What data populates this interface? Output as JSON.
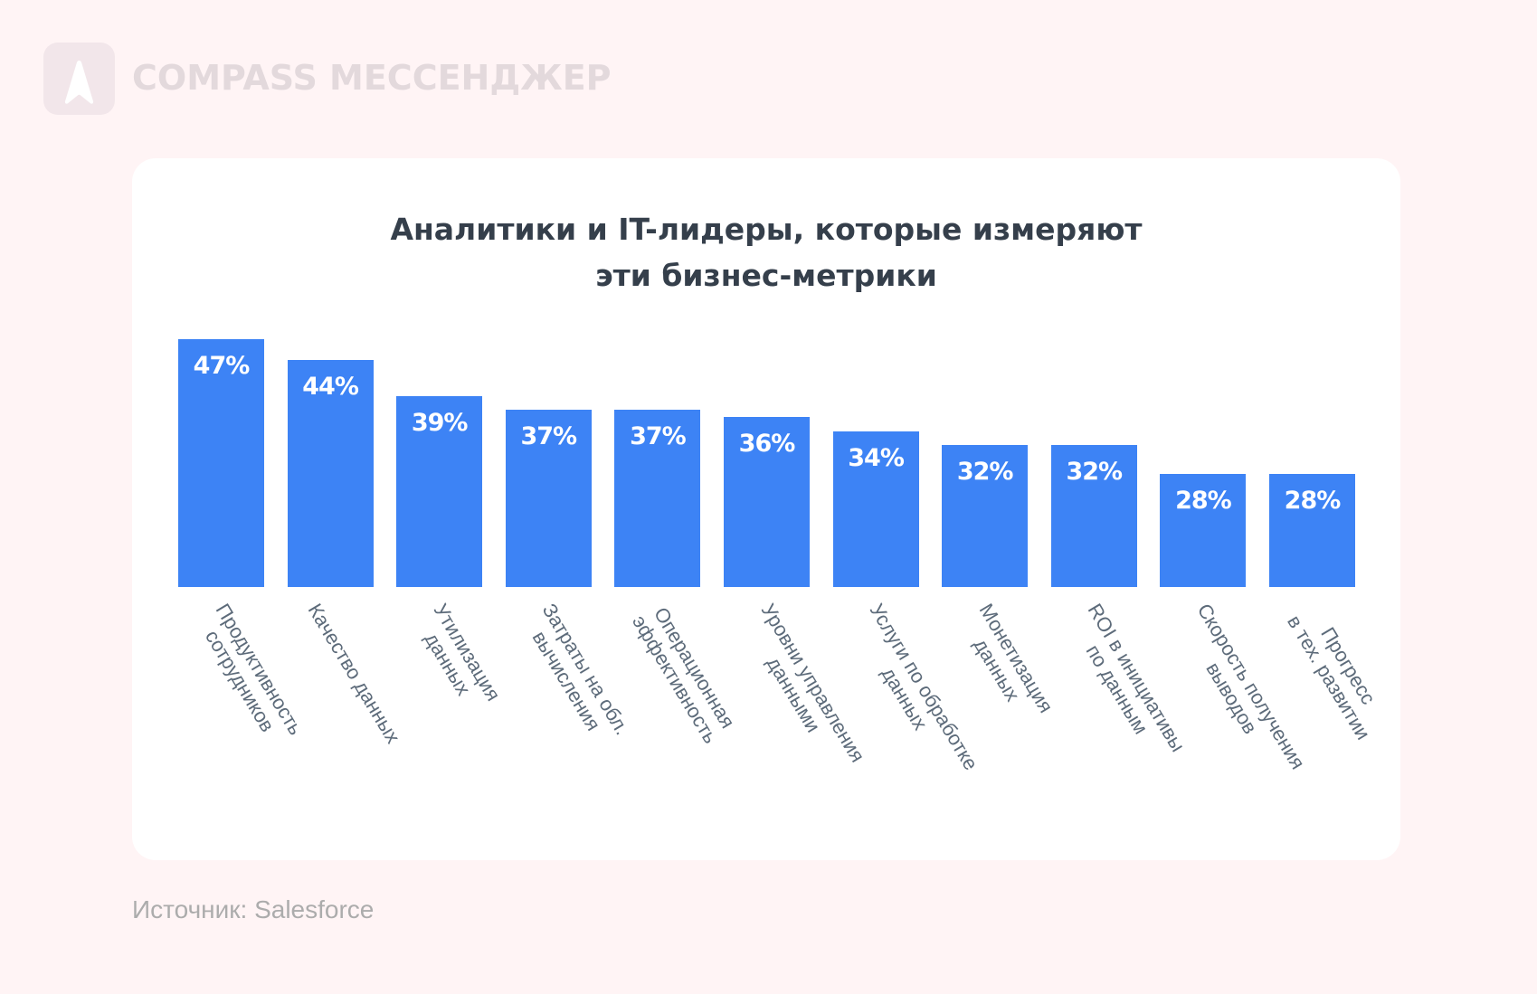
{
  "brand": {
    "logo_icon": "compass-arrow-icon",
    "name": "COMPASS МЕССЕНДЖЕР",
    "logo_color": "#f2e6ea",
    "text_color": "#e3d9dc"
  },
  "source": "Источник: Salesforce",
  "colors": {
    "background": "#fff4f5",
    "card": "#ffffff",
    "bar": "#3d83f5",
    "title": "#353f4b",
    "label": "#5d6b7a"
  },
  "chart_data": {
    "type": "bar",
    "title": "Аналитики и IT-лидеры, которые измеряют эти бизнес-метрики",
    "title_lines": [
      "Аналитики и IT-лидеры, которые измеряют",
      "эти бизнес-метрики"
    ],
    "xlabel": "",
    "ylabel": "",
    "ylim": [
      12,
      47
    ],
    "grid": false,
    "legend": "none",
    "categories": [
      [
        "Продуктивность",
        "сотрудников"
      ],
      [
        "Качество данных"
      ],
      [
        "Утилизация",
        "данных"
      ],
      [
        "Затраты на обл.",
        "вычисления"
      ],
      [
        "Операционная",
        "эффективность"
      ],
      [
        "Уровни управления",
        "данными"
      ],
      [
        "Услуги по обработке",
        "данных"
      ],
      [
        "Монетизация",
        "данных"
      ],
      [
        "ROI в инициативы",
        "по данным"
      ],
      [
        "Скорость получения",
        "выводов"
      ],
      [
        "Прогресс",
        "в тех. развитии"
      ]
    ],
    "values": [
      47,
      44,
      39,
      37,
      37,
      36,
      34,
      32,
      32,
      28,
      28
    ],
    "value_labels": [
      "47%",
      "44%",
      "39%",
      "37%",
      "37%",
      "36%",
      "34%",
      "32%",
      "32%",
      "28%",
      "28%"
    ]
  }
}
